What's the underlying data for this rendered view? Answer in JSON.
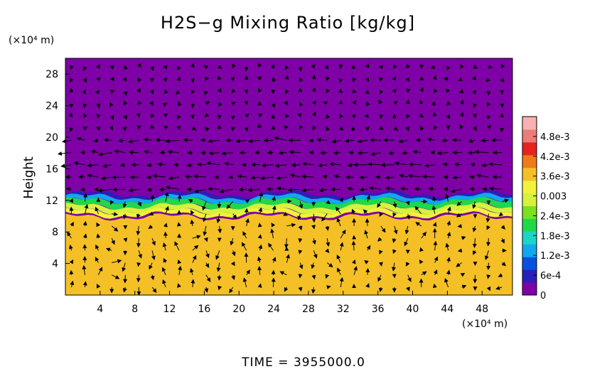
{
  "chart_data": {
    "type": "heatmap",
    "title": "H2S−g Mixing Ratio [kg/kg]",
    "ylabel": "Height",
    "x_unit": "(×10⁴ m)",
    "y_unit": "(×10⁴ m)",
    "xlim": [
      0,
      51.5
    ],
    "ylim": [
      0,
      30
    ],
    "x_ticks": [
      "4",
      "8",
      "12",
      "16",
      "20",
      "24",
      "28",
      "32",
      "36",
      "40",
      "44",
      "48"
    ],
    "y_ticks": [
      "4",
      "8",
      "12",
      "16",
      "20",
      "24",
      "28"
    ],
    "colorbar": {
      "min": 0,
      "max": 0.0054,
      "tick_values": [
        0,
        0.0006,
        0.0012,
        0.0018,
        0.0024,
        0.003,
        0.0036,
        0.0042,
        0.0048
      ],
      "tick_labels": [
        "0",
        "6e-4",
        "1.2e-3",
        "1.8e-3",
        "2.4e-3",
        "0.003",
        "3.6e-3",
        "4.2e-3",
        "4.8e-3"
      ],
      "colors": [
        "#7e00a6",
        "#2a1fb8",
        "#0a50e0",
        "#10a8ee",
        "#1ad6c6",
        "#20d84a",
        "#78e21e",
        "#d4f23e",
        "#f2f23a",
        "#f4c026",
        "#f07a1a",
        "#e8221e",
        "#ee7a7a",
        "#f8b0b0"
      ]
    },
    "field": {
      "upper_value": 0,
      "lower_value": 0.0036,
      "interface_height": 12.5,
      "interface_values_top_to_bottom": [
        0.0006,
        0.0013,
        0.0022,
        0.0028,
        0.0032
      ]
    },
    "vectors": "wind velocity arrows overlaid on the field"
  },
  "footer": {
    "time_label": "TIME  =  3955000.0"
  }
}
